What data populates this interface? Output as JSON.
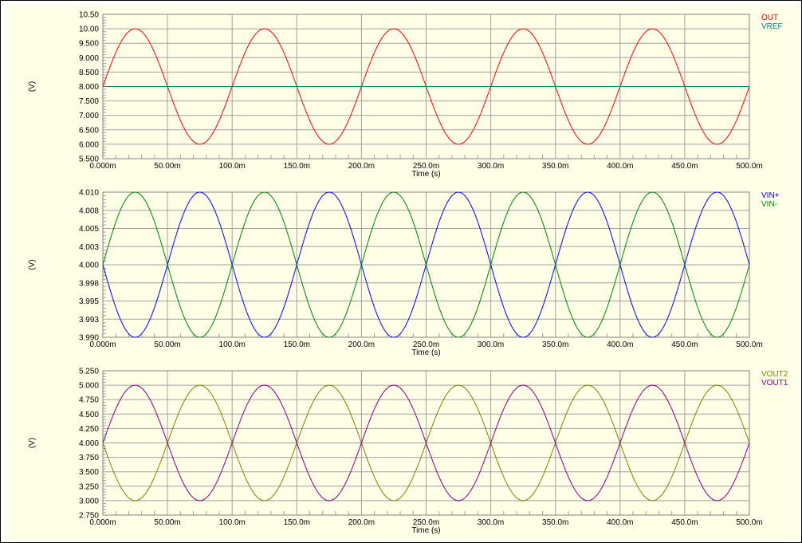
{
  "chart_data": [
    {
      "type": "line",
      "xlabel": "Time (s)",
      "ylabel": "(V)",
      "xlim": [
        0,
        500
      ],
      "ylim": [
        5.5,
        10.5
      ],
      "x_ticks": [
        "0.000m",
        "50.00m",
        "100.0m",
        "150.0m",
        "200.0m",
        "250.0m",
        "300.0m",
        "350.0m",
        "400.0m",
        "450.0m",
        "500.0m"
      ],
      "y_ticks": [
        "10.50",
        "10.00",
        "9.500",
        "9.000",
        "8.500",
        "8.000",
        "7.500",
        "7.000",
        "6.500",
        "6.000",
        "5.500"
      ],
      "grid": true,
      "legend_position": "top-right",
      "series": [
        {
          "name": "OUT",
          "color": "#ff0000",
          "waveform": "sine",
          "offset": 8.0,
          "amplitude": 2.0,
          "period_ms": 100,
          "phase": "rising-at-0"
        },
        {
          "name": "VREF",
          "color": "#008080",
          "waveform": "constant",
          "value": 8.0
        }
      ]
    },
    {
      "type": "line",
      "xlabel": "Time (s)",
      "ylabel": "(V)",
      "xlim": [
        0,
        500
      ],
      "ylim": [
        3.99,
        4.01
      ],
      "x_ticks": [
        "0.000m",
        "50.00m",
        "100.0m",
        "150.0m",
        "200.0m",
        "250.0m",
        "300.0m",
        "350.0m",
        "400.0m",
        "450.0m",
        "500.0m"
      ],
      "y_ticks": [
        "4.010",
        "4.008",
        "4.005",
        "4.003",
        "4.000",
        "3.998",
        "3.995",
        "3.993",
        "3.990"
      ],
      "grid": true,
      "legend_position": "top-right",
      "series": [
        {
          "name": "VIN+",
          "color": "#0000ff",
          "waveform": "sine",
          "offset": 4.0,
          "amplitude": 0.01,
          "period_ms": 100,
          "phase": "falling-at-0"
        },
        {
          "name": "VIN-",
          "color": "#008000",
          "waveform": "sine",
          "offset": 4.0,
          "amplitude": 0.01,
          "period_ms": 100,
          "phase": "rising-at-0"
        }
      ]
    },
    {
      "type": "line",
      "xlabel": "Time (s)",
      "ylabel": "(V)",
      "xlim": [
        0,
        500
      ],
      "ylim": [
        2.75,
        5.25
      ],
      "x_ticks": [
        "0.000m",
        "50.00m",
        "100.0m",
        "150.0m",
        "200.0m",
        "250.0m",
        "300.0m",
        "350.0m",
        "400.0m",
        "450.0m",
        "500.0m"
      ],
      "y_ticks": [
        "5.250",
        "5.000",
        "4.750",
        "4.500",
        "4.250",
        "4.000",
        "3.750",
        "3.500",
        "3.250",
        "3.000",
        "2.750"
      ],
      "grid": true,
      "legend_position": "top-right",
      "series": [
        {
          "name": "VOUT2",
          "color": "#808000",
          "waveform": "sine",
          "offset": 4.0,
          "amplitude": 1.0,
          "period_ms": 100,
          "phase": "falling-at-0"
        },
        {
          "name": "VOUT1",
          "color": "#800080",
          "waveform": "sine",
          "offset": 4.0,
          "amplitude": 1.0,
          "period_ms": 100,
          "phase": "rising-at-0"
        }
      ]
    }
  ]
}
